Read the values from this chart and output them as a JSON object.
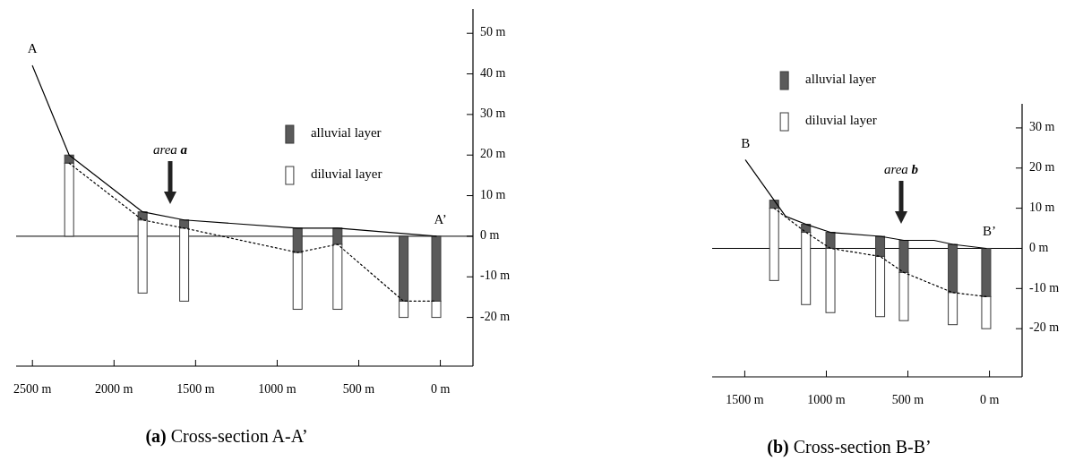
{
  "chart_data": [
    {
      "type": "bar",
      "title": "(a) Cross-section A-A’",
      "xlim": [
        2600,
        -200
      ],
      "ylim": [
        -32,
        56
      ],
      "xticks": [
        {
          "value": 2500,
          "label": "2500 m"
        },
        {
          "value": 2000,
          "label": "2000 m"
        },
        {
          "value": 1500,
          "label": "1500 m"
        },
        {
          "value": 1000,
          "label": "1000 m"
        },
        {
          "value": 500,
          "label": "500 m"
        },
        {
          "value": 0,
          "label": "0 m"
        }
      ],
      "yticks": [
        {
          "value": 50,
          "label": "50 m"
        },
        {
          "value": 40,
          "label": "40 m"
        },
        {
          "value": 30,
          "label": "30 m"
        },
        {
          "value": 20,
          "label": "20 m"
        },
        {
          "value": 10,
          "label": "10 m"
        },
        {
          "value": 0,
          "label": "0 m"
        },
        {
          "value": -10,
          "label": "-10 m"
        },
        {
          "value": -20,
          "label": "-20 m"
        }
      ],
      "legend": "top",
      "grid": false,
      "ref_lines": [
        {
          "axis": "y",
          "value": 0,
          "color": "#000000"
        }
      ],
      "series": [
        {
          "type": "line",
          "color": "#000000",
          "line_style": "solid",
          "x": [
            2500,
            2275,
            1825,
            1570,
            875,
            630,
            25
          ],
          "values": [
            42,
            20,
            6,
            4,
            2,
            2,
            0
          ]
        },
        {
          "type": "line",
          "color": "#000000",
          "line_style": "dotted",
          "x": [
            2275,
            1825,
            1570,
            875,
            630,
            225,
            25
          ],
          "values": [
            18,
            4,
            2,
            -4,
            -2,
            -16,
            -16
          ]
        },
        {
          "name": "alluvial layer",
          "color": "#5a5a5a",
          "x": [
            2275,
            1825,
            1570,
            875,
            630,
            225,
            25
          ],
          "base": [
            18,
            4,
            2,
            -4,
            -2,
            -16,
            -16
          ],
          "values": [
            2,
            2,
            2,
            6,
            4,
            16,
            16
          ]
        },
        {
          "name": "diluvial layer",
          "color": "#ffffff",
          "x": [
            2275,
            1825,
            1570,
            875,
            630,
            225,
            25
          ],
          "base": [
            0,
            -14,
            -16,
            -18,
            -18,
            -20,
            -20
          ],
          "values": [
            18,
            18,
            18,
            14,
            16,
            4,
            4
          ]
        }
      ],
      "annotations": [
        {
          "text": "A",
          "x": 2500,
          "y": 42
        },
        {
          "text": "A’",
          "x": 0,
          "y": 0
        },
        "area a"
      ]
    },
    {
      "type": "bar",
      "title": "(b) Cross-section B-B’",
      "xlim": [
        1700,
        -200
      ],
      "ylim": [
        -32,
        36
      ],
      "xticks": [
        {
          "value": 1500,
          "label": "1500 m"
        },
        {
          "value": 1000,
          "label": "1000 m"
        },
        {
          "value": 500,
          "label": "500 m"
        },
        {
          "value": 0,
          "label": "0 m"
        }
      ],
      "yticks": [
        {
          "value": 30,
          "label": "30 m"
        },
        {
          "value": 20,
          "label": "20 m"
        },
        {
          "value": 10,
          "label": "10 m"
        },
        {
          "value": 0,
          "label": "0 m"
        },
        {
          "value": -10,
          "label": "-10 m"
        },
        {
          "value": -20,
          "label": "-20 m"
        }
      ],
      "legend": "top left",
      "grid": false,
      "ref_lines": [
        {
          "axis": "y",
          "value": 0,
          "color": "#000000"
        }
      ],
      "series": [
        {
          "type": "line",
          "color": "#000000",
          "line_style": "solid",
          "x": [
            1495,
            1250,
            1125,
            975,
            670,
            525,
            340,
            225,
            20
          ],
          "values": [
            22,
            8,
            6,
            4,
            3,
            2,
            2,
            1,
            0
          ]
        },
        {
          "type": "line",
          "color": "#000000",
          "line_style": "dotted",
          "x": [
            1320,
            1125,
            975,
            670,
            525,
            225,
            20
          ],
          "values": [
            10,
            4,
            0,
            -2,
            -6,
            -11,
            -12
          ]
        },
        {
          "name": "alluvial layer",
          "color": "#5a5a5a",
          "x": [
            1320,
            1125,
            975,
            670,
            525,
            225,
            20
          ],
          "base": [
            10,
            4,
            0,
            -2,
            -6,
            -11,
            -12
          ],
          "values": [
            2,
            2,
            4,
            5,
            8,
            12,
            12
          ]
        },
        {
          "name": "diluvial layer",
          "color": "#ffffff",
          "x": [
            1320,
            1125,
            975,
            670,
            525,
            225,
            20
          ],
          "base": [
            -8,
            -14,
            -16,
            -17,
            -18,
            -19,
            -20
          ],
          "values": [
            18,
            18,
            16,
            15,
            12,
            8,
            8
          ]
        }
      ],
      "annotations": [
        {
          "text": "B",
          "x": 1495,
          "y": 22
        },
        {
          "text": "B’",
          "x": 0,
          "y": 0
        },
        "area b"
      ]
    }
  ]
}
